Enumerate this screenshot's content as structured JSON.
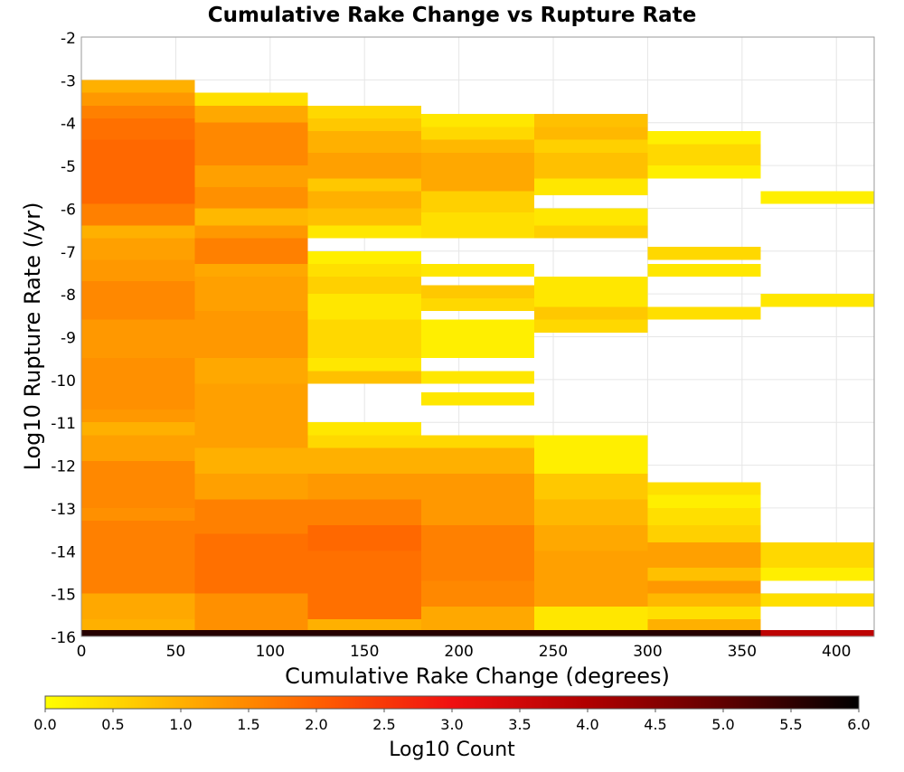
{
  "chart_data": {
    "type": "heatmap",
    "title": "Cumulative Rake Change vs Rupture Rate",
    "xlabel": "Cumulative Rake Change (degrees)",
    "ylabel": "Log10 Rupture Rate (/yr)",
    "xlim": [
      0,
      420
    ],
    "ylim": [
      -16,
      -2
    ],
    "x_ticks": [
      "0",
      "50",
      "100",
      "150",
      "200",
      "250",
      "300",
      "350",
      "400"
    ],
    "y_ticks": [
      "-2",
      "-3",
      "-4",
      "-5",
      "-6",
      "-7",
      "-8",
      "-9",
      "-10",
      "-11",
      "-12",
      "-13",
      "-14",
      "-15",
      "-16"
    ],
    "grid": true,
    "colorbar": {
      "label": "Log10 Count",
      "min": 0.0,
      "max": 6.0,
      "ticks": [
        "0.0",
        "0.5",
        "1.0",
        "1.5",
        "2.0",
        "2.5",
        "3.0",
        "3.5",
        "4.0",
        "4.5",
        "5.0",
        "5.5",
        "6.0"
      ],
      "stops": [
        {
          "v": 0.0,
          "c": "#ffff00"
        },
        {
          "v": 1.0,
          "c": "#ffb000"
        },
        {
          "v": 2.0,
          "c": "#ff6000"
        },
        {
          "v": 3.0,
          "c": "#f01010"
        },
        {
          "v": 4.0,
          "c": "#b00000"
        },
        {
          "v": 5.0,
          "c": "#600000"
        },
        {
          "v": 6.0,
          "c": "#000000"
        }
      ]
    },
    "columns": [
      {
        "x": [
          0,
          60
        ],
        "bins": [
          [
            -16.0,
            -15.85,
            5.6
          ],
          [
            -15.85,
            -15.6,
            1.0
          ],
          [
            -15.6,
            -15.0,
            1.1
          ],
          [
            -15.0,
            -13.3,
            1.6
          ],
          [
            -13.3,
            -13.0,
            1.4
          ],
          [
            -13.0,
            -11.9,
            1.5
          ],
          [
            -11.9,
            -11.3,
            1.2
          ],
          [
            -11.3,
            -11.0,
            1.0
          ],
          [
            -11.0,
            -10.7,
            1.3
          ],
          [
            -10.7,
            -9.5,
            1.4
          ],
          [
            -9.5,
            -8.6,
            1.3
          ],
          [
            -8.6,
            -7.7,
            1.5
          ],
          [
            -7.7,
            -7.2,
            1.3
          ],
          [
            -7.2,
            -6.7,
            1.2
          ],
          [
            -6.7,
            -6.4,
            1.0
          ],
          [
            -6.4,
            -5.9,
            1.6
          ],
          [
            -5.9,
            -4.4,
            1.9
          ],
          [
            -4.4,
            -3.9,
            1.8
          ],
          [
            -3.9,
            -3.6,
            1.6
          ],
          [
            -3.6,
            -3.3,
            1.3
          ],
          [
            -3.3,
            -3.0,
            1.0
          ]
        ]
      },
      {
        "x": [
          60,
          120
        ],
        "bins": [
          [
            -16.0,
            -15.85,
            5.6
          ],
          [
            -15.85,
            -15.0,
            1.4
          ],
          [
            -15.0,
            -13.6,
            1.8
          ],
          [
            -13.6,
            -12.8,
            1.6
          ],
          [
            -12.8,
            -12.2,
            1.2
          ],
          [
            -12.2,
            -11.6,
            1.0
          ],
          [
            -11.6,
            -10.1,
            1.2
          ],
          [
            -10.1,
            -9.5,
            1.1
          ],
          [
            -9.5,
            -8.4,
            1.3
          ],
          [
            -8.4,
            -7.6,
            1.2
          ],
          [
            -7.6,
            -7.3,
            1.1
          ],
          [
            -7.3,
            -6.7,
            1.6
          ],
          [
            -6.7,
            -6.4,
            1.3
          ],
          [
            -6.4,
            -6.0,
            0.9
          ],
          [
            -6.0,
            -5.5,
            1.4
          ],
          [
            -5.5,
            -5.0,
            1.2
          ],
          [
            -5.0,
            -4.0,
            1.5
          ],
          [
            -4.0,
            -3.6,
            1.1
          ],
          [
            -3.6,
            -3.3,
            0.4
          ]
        ]
      },
      {
        "x": [
          120,
          180
        ],
        "bins": [
          [
            -16.0,
            -15.85,
            5.6
          ],
          [
            -15.85,
            -15.6,
            1.0
          ],
          [
            -15.6,
            -14.0,
            1.8
          ],
          [
            -14.0,
            -13.4,
            1.9
          ],
          [
            -13.4,
            -12.8,
            1.6
          ],
          [
            -12.8,
            -12.2,
            1.3
          ],
          [
            -12.2,
            -11.6,
            1.0
          ],
          [
            -11.6,
            -11.3,
            0.5
          ],
          [
            -11.3,
            -11.0,
            0.3
          ],
          [
            -10.1,
            -9.8,
            0.8
          ],
          [
            -9.8,
            -9.5,
            0.3
          ],
          [
            -9.5,
            -8.6,
            0.5
          ],
          [
            -8.6,
            -8.0,
            0.3
          ],
          [
            -8.0,
            -7.6,
            0.6
          ],
          [
            -7.6,
            -7.3,
            0.4
          ],
          [
            -7.3,
            -7.0,
            0.2
          ],
          [
            -6.7,
            -6.4,
            0.3
          ],
          [
            -6.4,
            -6.0,
            0.8
          ],
          [
            -6.0,
            -5.6,
            1.0
          ],
          [
            -5.6,
            -5.3,
            0.7
          ],
          [
            -5.3,
            -4.7,
            1.2
          ],
          [
            -4.7,
            -4.2,
            1.0
          ],
          [
            -4.2,
            -3.9,
            0.7
          ],
          [
            -3.9,
            -3.6,
            0.5
          ]
        ]
      },
      {
        "x": [
          180,
          240
        ],
        "bins": [
          [
            -16.0,
            -15.85,
            5.6
          ],
          [
            -15.85,
            -15.3,
            1.1
          ],
          [
            -15.3,
            -14.7,
            1.5
          ],
          [
            -14.7,
            -13.4,
            1.6
          ],
          [
            -13.4,
            -12.2,
            1.3
          ],
          [
            -12.2,
            -11.6,
            1.0
          ],
          [
            -11.6,
            -11.3,
            0.5
          ],
          [
            -10.6,
            -10.3,
            0.3
          ],
          [
            -10.1,
            -9.8,
            0.3
          ],
          [
            -9.5,
            -8.6,
            0.2
          ],
          [
            -8.4,
            -8.1,
            0.5
          ],
          [
            -8.1,
            -7.8,
            0.7
          ],
          [
            -7.6,
            -7.3,
            0.3
          ],
          [
            -6.7,
            -6.1,
            0.4
          ],
          [
            -6.1,
            -5.6,
            0.6
          ],
          [
            -5.6,
            -4.7,
            1.1
          ],
          [
            -4.7,
            -4.4,
            0.9
          ],
          [
            -4.4,
            -4.1,
            0.5
          ],
          [
            -4.1,
            -3.8,
            0.3
          ]
        ]
      },
      {
        "x": [
          240,
          300
        ],
        "bins": [
          [
            -16.0,
            -15.85,
            5.6
          ],
          [
            -15.85,
            -15.3,
            0.3
          ],
          [
            -15.3,
            -14.0,
            1.2
          ],
          [
            -14.0,
            -13.4,
            1.1
          ],
          [
            -13.4,
            -12.8,
            0.9
          ],
          [
            -12.8,
            -12.2,
            0.7
          ],
          [
            -12.2,
            -11.3,
            0.2
          ],
          [
            -6.7,
            -6.4,
            0.6
          ],
          [
            -6.4,
            -6.0,
            0.3
          ],
          [
            -5.7,
            -5.3,
            0.3
          ],
          [
            -5.3,
            -4.7,
            0.8
          ],
          [
            -4.7,
            -4.4,
            0.6
          ],
          [
            -4.4,
            -4.1,
            0.9
          ],
          [
            -4.1,
            -3.8,
            0.8
          ],
          [
            -8.9,
            -8.6,
            0.5
          ],
          [
            -8.6,
            -8.3,
            0.7
          ],
          [
            -8.3,
            -7.6,
            0.3
          ]
        ]
      },
      {
        "x": [
          300,
          360
        ],
        "bins": [
          [
            -16.0,
            -15.85,
            5.6
          ],
          [
            -15.85,
            -15.6,
            1.0
          ],
          [
            -15.6,
            -15.3,
            0.4
          ],
          [
            -15.3,
            -15.0,
            0.9
          ],
          [
            -15.0,
            -14.7,
            1.3
          ],
          [
            -14.7,
            -14.4,
            0.8
          ],
          [
            -14.4,
            -13.8,
            1.2
          ],
          [
            -13.8,
            -13.4,
            0.6
          ],
          [
            -13.4,
            -13.0,
            0.4
          ],
          [
            -13.0,
            -12.7,
            0.2
          ],
          [
            -12.7,
            -12.4,
            0.4
          ],
          [
            -8.6,
            -8.3,
            0.4
          ],
          [
            -7.6,
            -7.3,
            0.3
          ],
          [
            -7.2,
            -6.9,
            0.5
          ],
          [
            -5.3,
            -5.0,
            0.2
          ],
          [
            -5.0,
            -4.5,
            0.5
          ],
          [
            -4.5,
            -4.2,
            0.2
          ]
        ]
      },
      {
        "x": [
          360,
          420
        ],
        "bins": [
          [
            -16.0,
            -15.85,
            3.8
          ],
          [
            -15.3,
            -15.0,
            0.4
          ],
          [
            -14.7,
            -14.4,
            0.2
          ],
          [
            -14.4,
            -13.8,
            0.5
          ],
          [
            -8.3,
            -8.0,
            0.3
          ],
          [
            -5.9,
            -5.6,
            0.2
          ]
        ]
      }
    ]
  }
}
